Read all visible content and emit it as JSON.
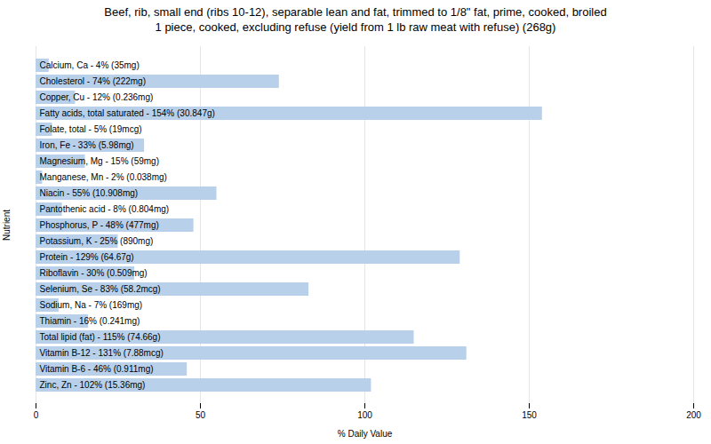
{
  "chart_data": {
    "type": "bar",
    "orientation": "horizontal",
    "title": "Beef, rib, small end (ribs 10-12), separable lean and fat, trimmed to 1/8\" fat, prime, cooked, broiled\n1 piece, cooked, excluding refuse (yield from 1 lb raw meat with refuse) (268g)",
    "xlabel": "% Daily Value",
    "ylabel": "Nutrient",
    "categories": [
      "Calcium, Ca - 4% (35mg)",
      "Cholesterol - 74% (222mg)",
      "Copper, Cu - 12% (0.236mg)",
      "Fatty acids, total saturated - 154% (30.847g)",
      "Folate, total - 5% (19mcg)",
      "Iron, Fe - 33% (5.98mg)",
      "Magnesium, Mg - 15% (59mg)",
      "Manganese, Mn - 2% (0.038mg)",
      "Niacin - 55% (10.908mg)",
      "Pantothenic acid - 8% (0.804mg)",
      "Phosphorus, P - 48% (477mg)",
      "Potassium, K - 25% (890mg)",
      "Protein - 129% (64.67g)",
      "Riboflavin - 30% (0.509mg)",
      "Selenium, Se - 83% (58.2mcg)",
      "Sodium, Na - 7% (169mg)",
      "Thiamin - 16% (0.241mg)",
      "Total lipid (fat) - 115% (74.66g)",
      "Vitamin B-12 - 131% (7.88mcg)",
      "Vitamin B-6 - 46% (0.911mg)",
      "Zinc, Zn - 102% (15.36mg)"
    ],
    "values": [
      4,
      74,
      12,
      154,
      5,
      33,
      15,
      2,
      55,
      8,
      48,
      25,
      129,
      30,
      83,
      7,
      16,
      115,
      131,
      46,
      102
    ],
    "color": "#b8d0ea",
    "xlim": [
      0,
      200
    ],
    "xticks": [
      0,
      50,
      100,
      150,
      200
    ],
    "grid": true,
    "tick_labels": "x"
  }
}
